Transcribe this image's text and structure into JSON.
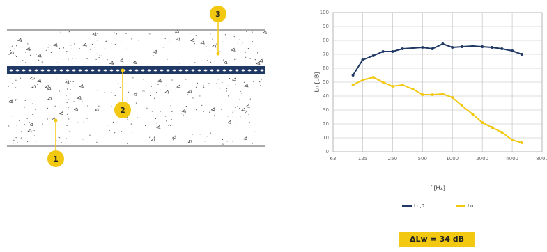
{
  "diagram": {
    "callouts": [
      "1",
      "2",
      "3"
    ]
  },
  "result": "ΔLw = 34 dB",
  "chart_data": {
    "type": "line",
    "x_label": "f [Hz]",
    "y_label": "Ln [dB]",
    "x": [
      100,
      125,
      160,
      200,
      250,
      315,
      400,
      500,
      630,
      800,
      1000,
      1250,
      1600,
      2000,
      2500,
      3150,
      4000,
      5000
    ],
    "series": [
      {
        "name": "Ln,0",
        "color": "#1f3864",
        "values": [
          55,
          66,
          69,
          72,
          72,
          74,
          74.5,
          75,
          74,
          77.5,
          75,
          75.5,
          76,
          75.5,
          75,
          74,
          72.5,
          70
        ]
      },
      {
        "name": "Ln",
        "color": "#f2c811",
        "values": [
          48,
          51.5,
          53.5,
          50,
          47,
          48,
          45,
          41,
          41,
          41.5,
          39,
          33,
          27,
          21,
          17.5,
          14,
          8.5,
          6.5
        ]
      }
    ],
    "xscale": "log",
    "xlim": [
      63,
      8000
    ],
    "xticks": [
      63,
      125,
      250,
      500,
      1000,
      2000,
      4000,
      8000
    ],
    "ylim": [
      0,
      100
    ],
    "yticks": [
      0,
      10,
      20,
      30,
      40,
      50,
      60,
      70,
      80,
      90,
      100
    ],
    "grid": true,
    "legend": "bottom"
  }
}
